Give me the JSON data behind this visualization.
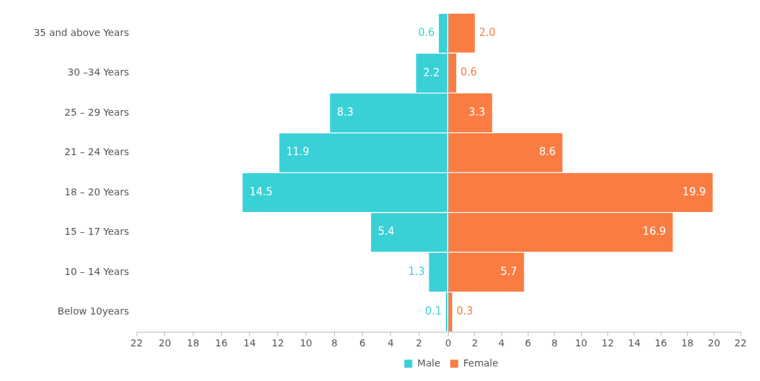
{
  "chart_data": [
    {
      "type": "bar",
      "orientation": "horizontal",
      "categories": [
        "35 and above Years",
        "30 –34 Years",
        "25 – 29 Years",
        "21 – 24 Years",
        "18 – 20 Years",
        "15 – 17 Years",
        "10 – 14 Years",
        "Below 10years"
      ],
      "series": [
        {
          "name": "Male",
          "color": "#3ad1d6",
          "values": [
            0.6,
            2.2,
            8.3,
            11.9,
            14.5,
            5.4,
            1.3,
            0.1
          ],
          "value_labels": [
            "0.6",
            "2.2",
            "8.3",
            "11.9",
            "14.5",
            "5.4",
            "1.3",
            "0.1"
          ]
        }
      ],
      "xlim": [
        22,
        0
      ],
      "xticks": [
        22,
        20,
        18,
        16,
        14,
        12,
        10,
        8,
        6,
        4,
        2
      ],
      "grid": false,
      "legend": "bottom right"
    },
    {
      "type": "bar",
      "orientation": "horizontal",
      "categories": [
        null,
        null,
        null,
        null,
        null,
        null,
        null,
        null
      ],
      "series": [
        {
          "name": "Female",
          "color": "#f97d43",
          "values": [
            2.0,
            0.6,
            3.3,
            8.6,
            19.9,
            16.9,
            5.7,
            0.3
          ],
          "value_labels": [
            "2.0",
            "0.6",
            "3.3",
            "8.6",
            "19.9",
            "16.9",
            "5.7",
            "0.3"
          ]
        }
      ],
      "xlim": [
        0,
        22
      ],
      "xticks": [
        0,
        2,
        4,
        6,
        8,
        10,
        12,
        14,
        16,
        18,
        20,
        22
      ],
      "grid": false,
      "legend": "bottom left",
      "tick_labels": "x"
    }
  ]
}
